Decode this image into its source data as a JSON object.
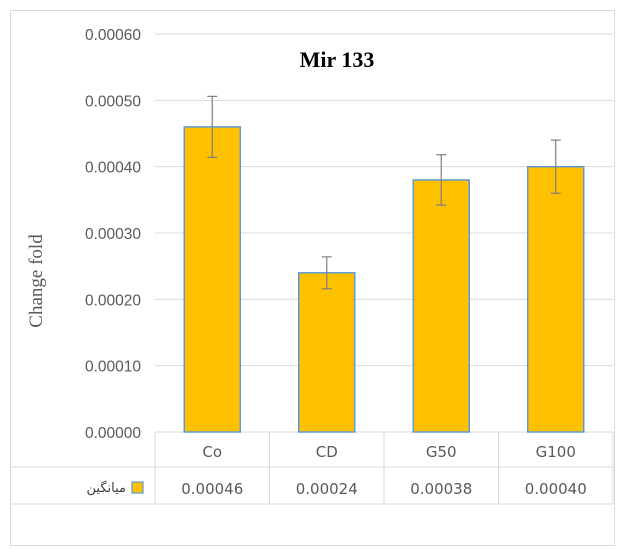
{
  "chart_data": {
    "type": "bar",
    "title": "Mir 133",
    "ylabel": "Change fold",
    "xlabel": "",
    "categories": [
      "Co",
      "CD",
      "G50",
      "G100"
    ],
    "series": [
      {
        "name": "میانگین",
        "values": [
          0.00046,
          0.00024,
          0.00038,
          0.0004
        ],
        "value_labels": [
          "0.00046",
          "0.00024",
          "0.00038",
          "0.00040"
        ],
        "error_low": [
          0.000414,
          0.000216,
          0.000342,
          0.00036
        ],
        "error_high": [
          0.000506,
          0.000264,
          0.000418,
          0.00044
        ]
      }
    ],
    "ylim": [
      0,
      0.0006
    ],
    "yticks": [
      0,
      0.0001,
      0.0002,
      0.0003,
      0.0004,
      0.0005,
      0.0006
    ],
    "ytick_labels": [
      "0.00000",
      "0.00010",
      "0.00020",
      "0.00030",
      "0.00040",
      "0.00050",
      "0.00060"
    ],
    "grid": true,
    "data_table": true,
    "colors": {
      "bar_fill": "#ffc000",
      "bar_stroke": "#5b9bd5",
      "title": "#ff0000",
      "grid": "#d9d9d9",
      "error_bar": "#7f7f7f"
    }
  }
}
